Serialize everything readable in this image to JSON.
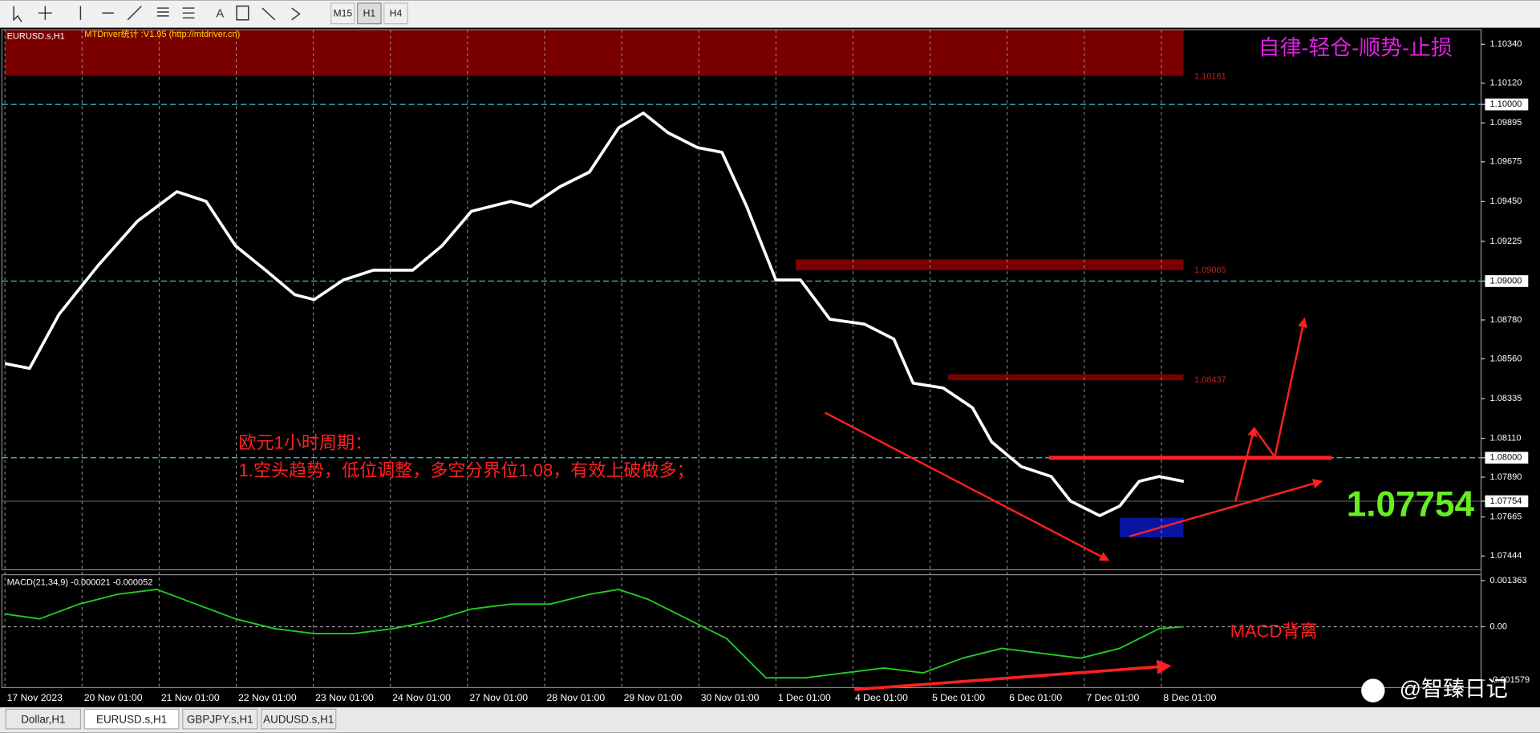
{
  "toolbar": {
    "timeframes": [
      "M15",
      "H1",
      "H4"
    ]
  },
  "header": {
    "symbol": "EURUSD.s,H1",
    "indicator": "MTDriver统计 :V1.95 (http://mtdriver.cn)"
  },
  "slogan": "自律-轻仓-顺势-止损",
  "notes": [
    "欧元1小时周期：",
    "1.空头趋势，低位调整，多空分界位1.08，有效上破做多；"
  ],
  "price_big": "1.07754",
  "zone_labels": [
    "1.10161",
    "1.09065",
    "1.08437"
  ],
  "macd_note": "MACD背离",
  "watermark": "@智臻日记",
  "tabs": [
    "Dollar,H1",
    "EURUSD.s,H1",
    "GBPJPY.s,H1",
    "AUDUSD.s,H1"
  ],
  "chart_data": [
    {
      "type": "line",
      "color": "#ffffff",
      "grid": true,
      "xlim": [
        -0.064,
        19.108
      ],
      "ylim": [
        1.07366,
        1.10423
      ],
      "xticks": [
        {
          "value": 0,
          "label": "17 Nov 2023"
        },
        {
          "value": 1,
          "label": "20 Nov 01:00"
        },
        {
          "value": 2,
          "label": "21 Nov 01:00"
        },
        {
          "value": 3,
          "label": "22 Nov 01:00"
        },
        {
          "value": 4,
          "label": "23 Nov 01:00"
        },
        {
          "value": 5,
          "label": "24 Nov 01:00"
        },
        {
          "value": 6,
          "label": "27 Nov 01:00"
        },
        {
          "value": 7,
          "label": "28 Nov 01:00"
        },
        {
          "value": 8,
          "label": "29 Nov 01:00"
        },
        {
          "value": 9,
          "label": "30 Nov 01:00"
        },
        {
          "value": 10,
          "label": "1 Dec 01:00"
        },
        {
          "value": 11,
          "label": "4 Dec 01:00"
        },
        {
          "value": 12,
          "label": "5 Dec 01:00"
        },
        {
          "value": 13,
          "label": "6 Dec 01:00"
        },
        {
          "value": 14,
          "label": "7 Dec 01:00"
        },
        {
          "value": 15,
          "label": "8 Dec 01:00"
        }
      ],
      "yticks": [
        {
          "value": 1.1034,
          "label": "1.10340"
        },
        {
          "value": 1.1012,
          "label": "1.10120"
        },
        {
          "value": 1.1,
          "label": "1.10000"
        },
        {
          "value": 1.09895,
          "label": "1.09895"
        },
        {
          "value": 1.09675,
          "label": "1.09675"
        },
        {
          "value": 1.0945,
          "label": "1.09450"
        },
        {
          "value": 1.09225,
          "label": "1.09225"
        },
        {
          "value": 1.09,
          "label": "1.09000"
        },
        {
          "value": 1.0878,
          "label": "1.08780"
        },
        {
          "value": 1.0856,
          "label": "1.08560"
        },
        {
          "value": 1.08335,
          "label": "1.08335"
        },
        {
          "value": 1.0811,
          "label": "1.08110"
        },
        {
          "value": 1.08,
          "label": "1.08000"
        },
        {
          "value": 1.0789,
          "label": "1.07890"
        },
        {
          "value": 1.07754,
          "label": "1.07754"
        },
        {
          "value": 1.07665,
          "label": "1.07665"
        },
        {
          "value": 1.07444,
          "label": "1.07444"
        }
      ],
      "x": [
        0,
        0.32,
        0.7,
        1.21,
        1.72,
        2.23,
        2.61,
        2.99,
        3.38,
        3.76,
        4.01,
        4.39,
        4.78,
        5.29,
        5.67,
        6.05,
        6.56,
        6.82,
        7.2,
        7.58,
        7.96,
        8.28,
        8.6,
        8.98,
        9.3,
        9.62,
        10,
        10.32,
        10.7,
        11.15,
        11.53,
        11.78,
        12.17,
        12.55,
        12.8,
        13.18,
        13.57,
        13.82,
        14.2,
        14.46,
        14.71,
        14.97,
        15.29
      ],
      "values": [
        1.08533,
        1.08506,
        1.08811,
        1.09089,
        1.09339,
        1.09506,
        1.09451,
        1.092,
        1.09062,
        1.08923,
        1.08895,
        1.09006,
        1.09062,
        1.09062,
        1.092,
        1.09395,
        1.09451,
        1.09423,
        1.09534,
        1.09617,
        1.09868,
        1.09951,
        1.0984,
        1.09756,
        1.09729,
        1.09423,
        1.09006,
        1.09006,
        1.08784,
        1.08756,
        1.08672,
        1.08422,
        1.08395,
        1.08283,
        1.08089,
        1.0795,
        1.07894,
        1.07755,
        1.07672,
        1.07727,
        1.07866,
        1.07894,
        1.07866
      ]
    },
    {
      "type": "line",
      "title": "MACD(21,34,9) -0.000021 -0.000052",
      "color": "#22cc22",
      "xlim": [
        -0.064,
        19.108
      ],
      "ylim": [
        -0.001798,
        0.001537
      ],
      "yticks": [
        {
          "value": 0.001363,
          "label": "0.001363"
        },
        {
          "value": 0,
          "label": "0.00"
        },
        {
          "value": -0.001579,
          "label": "-0.001579"
        }
      ],
      "x": [
        0,
        0.45,
        0.96,
        1.46,
        1.97,
        2.48,
        2.99,
        3.5,
        4.01,
        4.52,
        5.03,
        5.54,
        6.05,
        6.56,
        7.07,
        7.58,
        7.96,
        8.34,
        8.85,
        9.36,
        9.87,
        10.38,
        10.89,
        11.4,
        11.91,
        12.42,
        12.93,
        13.44,
        13.95,
        14.46,
        14.97,
        15.29
      ],
      "values": [
        0.000377,
        0.000232,
        0.000667,
        0.000957,
        0.001102,
        0.000667,
        0.000232,
        -5.8e-05,
        -0.000203,
        -0.000203,
        -5.8e-05,
        0.000174,
        0.000522,
        0.000667,
        0.000667,
        0.000957,
        0.001102,
        0.000812,
        0.000232,
        -0.000348,
        -0.001508,
        -0.001508,
        -0.001363,
        -0.001218,
        -0.001363,
        -0.000928,
        -0.000638,
        -0.000783,
        -0.000928,
        -0.000638,
        -5.8e-05,
        0
      ]
    }
  ]
}
